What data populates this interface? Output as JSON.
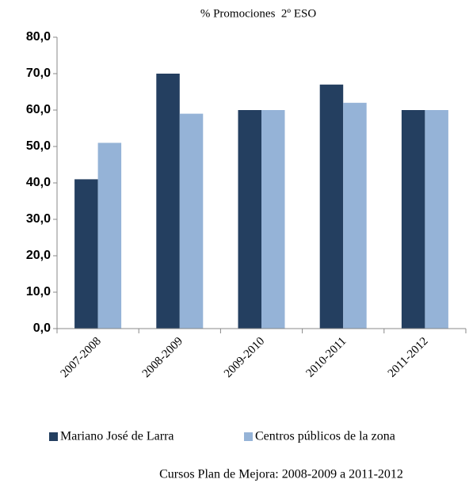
{
  "chart_data": {
    "type": "bar",
    "title": "% Promociones  2º ESO",
    "x_label": "Cursos Plan de Mejora: 2008-2009 a 2011-2012",
    "categories": [
      "2007-2008",
      "2008-2009",
      "2009-2010",
      "2010-2011",
      "2011-2012"
    ],
    "series": [
      {
        "name": "Mariano José de Larra",
        "color": "#243f60",
        "values": [
          41,
          70,
          60,
          67,
          60
        ]
      },
      {
        "name": "Centros públicos de la zona",
        "color": "#95b3d7",
        "values": [
          51,
          59,
          60,
          62,
          60
        ]
      }
    ],
    "ylim": [
      0,
      80
    ],
    "yticks": [
      {
        "value": 0,
        "label": "0,0"
      },
      {
        "value": 10,
        "label": "10,0"
      },
      {
        "value": 20,
        "label": "20,0"
      },
      {
        "value": 30,
        "label": "30,0"
      },
      {
        "value": 40,
        "label": "40,0"
      },
      {
        "value": 50,
        "label": "50,0"
      },
      {
        "value": 60,
        "label": "60,0"
      },
      {
        "value": 70,
        "label": "70,0"
      },
      {
        "value": 80,
        "label": "80,0"
      }
    ],
    "grid": false,
    "legend": "bottom"
  }
}
